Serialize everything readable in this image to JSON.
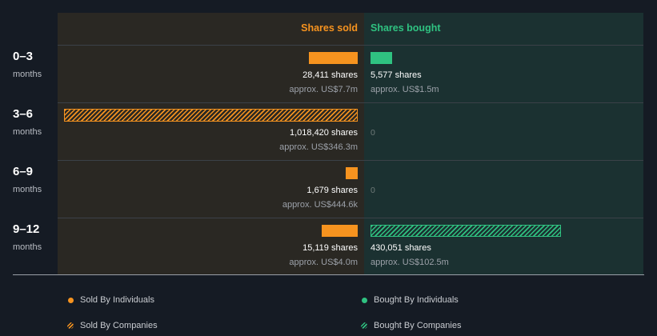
{
  "chart_data": {
    "type": "bar",
    "columns": {
      "sold": "Shares sold",
      "bought": "Shares bought"
    },
    "colors": {
      "sold": "#f6931f",
      "bought": "#2fc281",
      "sold_bg": "#2a2823",
      "bought_bg": "#1b3131"
    },
    "rows": [
      {
        "period": "0–3",
        "unit": "months",
        "sold": {
          "individuals": 28411,
          "companies": 0,
          "shares_label": "28,411 shares",
          "approx_label": "approx. US$7.7m"
        },
        "bought": {
          "individuals": 5577,
          "companies": 0,
          "shares_label": "5,577 shares",
          "approx_label": "approx. US$1.5m"
        }
      },
      {
        "period": "3–6",
        "unit": "months",
        "sold": {
          "individuals": 0,
          "companies": 1018420,
          "shares_label": "1,018,420 shares",
          "approx_label": "approx. US$346.3m"
        },
        "bought": {
          "individuals": 0,
          "companies": 0,
          "zero_label": "0"
        }
      },
      {
        "period": "6–9",
        "unit": "months",
        "sold": {
          "individuals": 1679,
          "companies": 0,
          "shares_label": "1,679 shares",
          "approx_label": "approx. US$444.6k"
        },
        "bought": {
          "individuals": 0,
          "companies": 0,
          "zero_label": "0"
        }
      },
      {
        "period": "9–12",
        "unit": "months",
        "sold": {
          "individuals": 15119,
          "companies": 0,
          "shares_label": "15,119 shares",
          "approx_label": "approx. US$4.0m"
        },
        "bought": {
          "individuals": 0,
          "companies": 430051,
          "shares_label": "430,051 shares",
          "approx_label": "approx. US$102.5m"
        }
      }
    ],
    "legend": [
      {
        "label": "Sold By Individuals",
        "kind": "sold-individuals"
      },
      {
        "label": "Bought By Individuals",
        "kind": "bought-individuals"
      },
      {
        "label": "Sold By Companies",
        "kind": "sold-companies"
      },
      {
        "label": "Bought By Companies",
        "kind": "bought-companies"
      }
    ]
  }
}
